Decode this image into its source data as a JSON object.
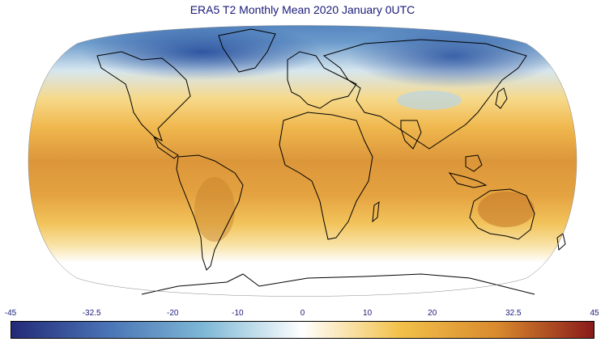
{
  "title": "ERA5 T2 Monthly Mean 2020 January 0UTC",
  "colorbar": {
    "min": -45,
    "max": 45,
    "tick_labels": [
      "-45",
      "-32.5",
      "-20",
      "-10",
      "0",
      "10",
      "20",
      "32.5",
      "45"
    ],
    "tick_values": [
      -45,
      -32.5,
      -20,
      -10,
      0,
      10,
      20,
      32.5,
      45
    ],
    "colors": [
      "#232a78",
      "#4a74b5",
      "#7fb9d6",
      "#ffffff",
      "#f2c14a",
      "#d98a2e",
      "#8a1a1a"
    ]
  },
  "map": {
    "projection": "robinson",
    "ocean_colors": {
      "polar_north": "#5b8ec4",
      "mid": "#f4c257",
      "tropics": "#dc9c3d",
      "polar_south": "#ffffff"
    }
  }
}
